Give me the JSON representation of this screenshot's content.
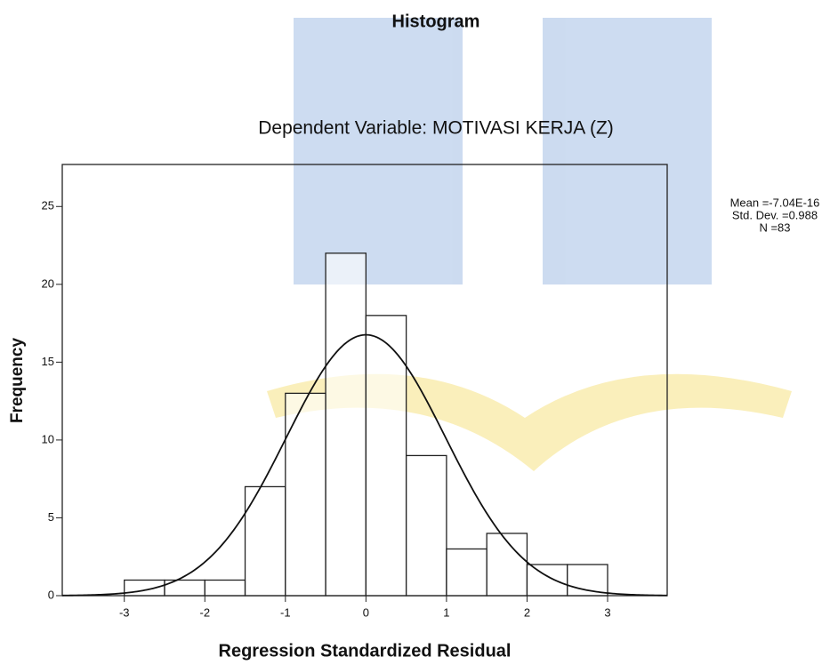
{
  "chart_data": {
    "type": "histogram",
    "title": "Histogram",
    "subtitle": "Dependent Variable: MOTIVASI KERJA (Z)",
    "xlabel": "Regression Standardized Residual",
    "ylabel": "Frequency",
    "bins": [
      -3,
      -2.5,
      -2,
      -1.5,
      -1,
      -0.5,
      0,
      0.5,
      1,
      1.5,
      2,
      2.5,
      3
    ],
    "values": [
      1,
      1,
      1,
      7,
      13,
      22,
      18,
      9,
      3,
      4,
      2,
      2
    ],
    "color": "#ffffff",
    "xlim": [
      -3.77,
      3.74
    ],
    "xticks": [
      -3,
      -2,
      -1,
      0,
      1,
      2,
      3
    ],
    "ylim": [
      0,
      27.7
    ],
    "yticks": [
      0,
      5,
      10,
      15,
      20,
      25
    ],
    "stats": [
      {
        "label": "Mean =-7.04E-16",
        "value": -7.04e-16
      },
      {
        "label": "Std. Dev. =0.988",
        "value": 0.988
      },
      {
        "label": "N =83",
        "value": 83
      }
    ]
  }
}
